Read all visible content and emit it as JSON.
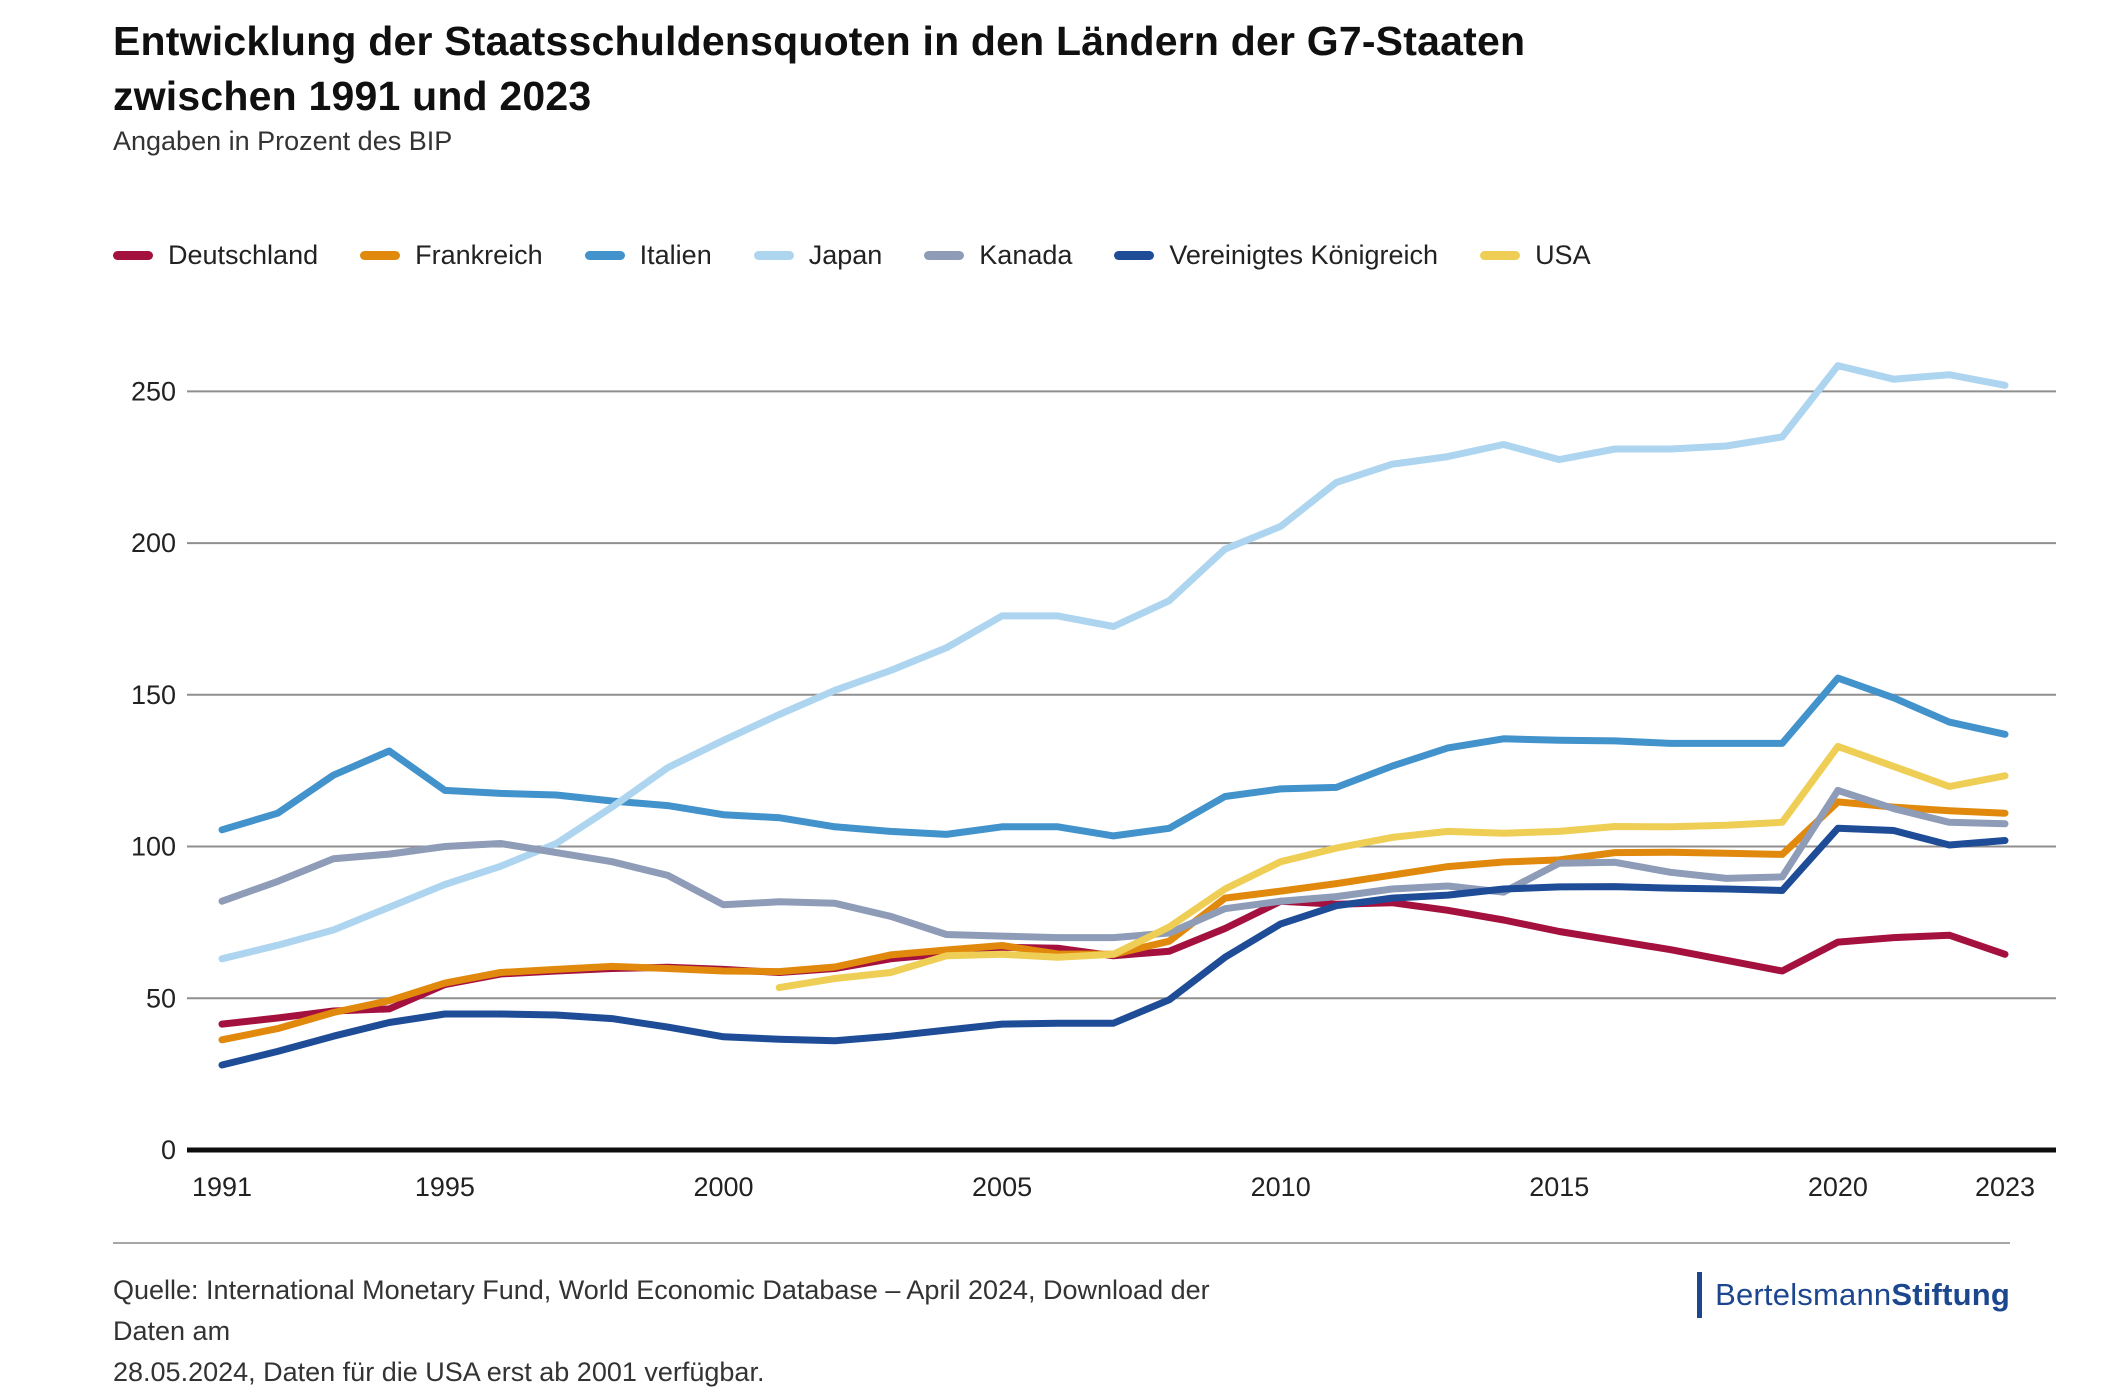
{
  "header": {
    "title_line1": "Entwicklung der Staatsschuldensquoten in den Ländern der G7-Staaten",
    "title_line2": "zwischen 1991 und 2023",
    "subtitle": "Angaben in Prozent des BIP"
  },
  "chart_data": {
    "type": "line",
    "title": "Entwicklung der Staatsschuldensquoten in den Ländern der G7-Staaten zwischen 1991 und 2023",
    "ylabel": "Angaben in Prozent des BIP",
    "x_range": [
      1991,
      2023
    ],
    "x_ticks": [
      1991,
      1995,
      2000,
      2005,
      2010,
      2015,
      2020,
      2023
    ],
    "y_ticks": [
      0,
      50,
      100,
      150,
      200,
      250
    ],
    "ylim": [
      0,
      268
    ],
    "grid": true,
    "legend_position": "top",
    "series": [
      {
        "name": "Deutschland",
        "color": "#a4113f",
        "start_year": 1991,
        "values": [
          41.5,
          43.5,
          45.8,
          46.5,
          54.5,
          58,
          59,
          59.8,
          60.2,
          59.5,
          58.5,
          59.8,
          63,
          64.7,
          66.8,
          66.5,
          64,
          65.5,
          73,
          82,
          81,
          81.5,
          79,
          75.8,
          72,
          69,
          66,
          62.5,
          59,
          68.5,
          70,
          70.8,
          64.5
        ]
      },
      {
        "name": "Frankreich",
        "color": "#e1890c",
        "start_year": 1991,
        "values": [
          36.3,
          40,
          45.3,
          49.2,
          55,
          58.5,
          59.5,
          60.5,
          59.8,
          59,
          58.8,
          60.3,
          64.3,
          65.9,
          67.4,
          64.6,
          64.5,
          68.8,
          83,
          85.3,
          87.8,
          90.6,
          93.4,
          94.9,
          95.6,
          98,
          98.1,
          97.8,
          97.4,
          114.7,
          113,
          111.8,
          111
        ]
      },
      {
        "name": "Italien",
        "color": "#4292cc",
        "start_year": 1991,
        "values": [
          105.5,
          111,
          123.5,
          131.5,
          118.5,
          117.5,
          117,
          115,
          113.5,
          110.5,
          109.5,
          106.5,
          105,
          104,
          106.5,
          106.5,
          103.5,
          106,
          116.5,
          119,
          119.5,
          126.5,
          132.5,
          135.5,
          135,
          134.8,
          134,
          134,
          134,
          155.5,
          149,
          141,
          137
        ]
      },
      {
        "name": "Japan",
        "color": "#aed5f0",
        "start_year": 1991,
        "values": [
          63,
          67.5,
          72.5,
          80,
          87.5,
          93.5,
          101,
          113,
          126,
          135,
          143.5,
          151.5,
          158,
          165.5,
          176,
          176,
          172.5,
          181,
          198,
          205.5,
          220,
          226,
          228.5,
          232.5,
          227.5,
          231,
          231,
          232,
          235,
          258.5,
          254,
          255.5,
          252
        ]
      },
      {
        "name": "Kanada",
        "color": "#8e9cb8",
        "start_year": 1991,
        "values": [
          82,
          88.5,
          96,
          97.5,
          100,
          101,
          98,
          95,
          90.5,
          80.8,
          81.8,
          81.3,
          77,
          71,
          70.5,
          70,
          70,
          71.5,
          79.5,
          82,
          83.5,
          86,
          87,
          85,
          94.5,
          94.8,
          91.5,
          89.5,
          90,
          118.5,
          112.5,
          108,
          107.5
        ]
      },
      {
        "name": "Vereinigtes Königreich",
        "color": "#1e4c97",
        "start_year": 1991,
        "values": [
          28,
          32.5,
          37.5,
          42,
          44.8,
          44.8,
          44.5,
          43.3,
          40.5,
          37.3,
          36.5,
          36,
          37.5,
          39.5,
          41.5,
          41.8,
          41.8,
          49.5,
          63.5,
          74.5,
          80.5,
          83,
          84,
          86,
          86.7,
          86.8,
          86.3,
          86,
          85.5,
          106,
          105.3,
          100.5,
          102
        ]
      },
      {
        "name": "USA",
        "color": "#efce55",
        "start_year": 2001,
        "values": [
          53.5,
          56.5,
          58.5,
          64,
          64.5,
          63.5,
          64.5,
          73.5,
          86,
          95,
          99.5,
          103,
          105,
          104.4,
          105,
          106.6,
          106.5,
          107,
          108,
          133,
          126.4,
          119.8,
          123.3
        ]
      }
    ]
  },
  "footer": {
    "source_line1": "Quelle: International Monetary Fund, World Economic Database – April 2024, Download der Daten am",
    "source_line2": "28.05.2024, Daten für die USA erst ab 2001 verfügbar.",
    "logo_regular": "Bertelsmann",
    "logo_bold": "Stiftung"
  }
}
